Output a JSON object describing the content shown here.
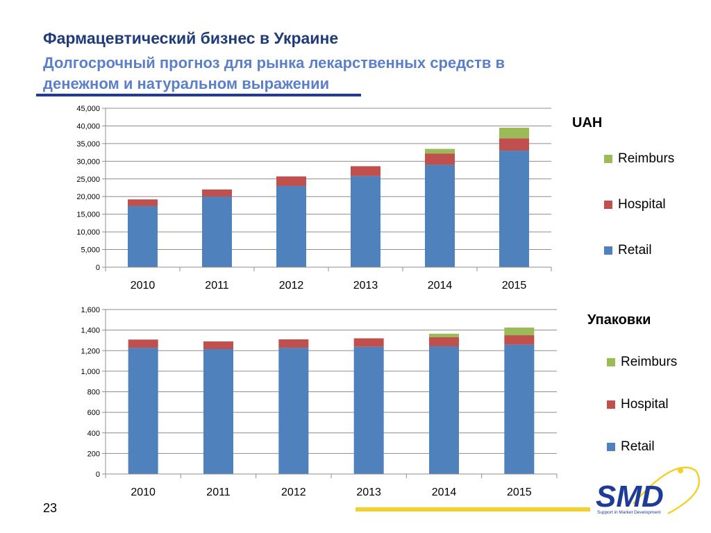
{
  "header": {
    "title": "Фармацевтический бизнес в Украине",
    "subtitle_line1": "Долгосрочный прогноз для рынка лекарственных средств в",
    "subtitle_line2": "денежном и натуральном выражении"
  },
  "colors": {
    "retail": "#4f81bd",
    "hospital": "#c0504d",
    "reimburs": "#9bbb59"
  },
  "chart_data": [
    {
      "type": "bar",
      "stacked": true,
      "legend_title": "UAH",
      "legend_position": "right",
      "grid": true,
      "ylim": [
        0,
        45000
      ],
      "yticks": [
        "0",
        "5,000",
        "10,000",
        "15,000",
        "20,000",
        "25,000",
        "30,000",
        "35,000",
        "40,000",
        "45,000"
      ],
      "categories": [
        "2010",
        "2011",
        "2012",
        "2013",
        "2014",
        "2015"
      ],
      "series": [
        {
          "name": "Retail",
          "values": [
            17300,
            20000,
            23000,
            25800,
            29000,
            33000
          ]
        },
        {
          "name": "Hospital",
          "values": [
            1900,
            2000,
            2700,
            2800,
            3200,
            3500
          ]
        },
        {
          "name": "Reimburs",
          "values": [
            0,
            0,
            0,
            0,
            1300,
            3000
          ]
        }
      ],
      "legend_order": [
        "Reimburs",
        "Hospital",
        "Retail"
      ]
    },
    {
      "type": "bar",
      "stacked": true,
      "legend_title": "Упаковки",
      "legend_position": "right",
      "grid": true,
      "ylim": [
        0,
        1600
      ],
      "yticks": [
        "0",
        "200",
        "400",
        "600",
        "800",
        "1,000",
        "1,200",
        "1,400",
        "1,600"
      ],
      "categories": [
        "2010",
        "2011",
        "2012",
        "2013",
        "2014",
        "2015"
      ],
      "series": [
        {
          "name": "Retail",
          "values": [
            1228,
            1215,
            1228,
            1237,
            1242,
            1258
          ]
        },
        {
          "name": "Hospital",
          "values": [
            80,
            75,
            82,
            83,
            88,
            92
          ]
        },
        {
          "name": "Reimburs",
          "values": [
            0,
            0,
            0,
            0,
            35,
            75
          ]
        }
      ],
      "legend_order": [
        "Reimburs",
        "Hospital",
        "Retail"
      ]
    }
  ],
  "footer": {
    "page_number": "23",
    "logo_text": "SMD",
    "logo_tagline": "Support in Market Development"
  }
}
